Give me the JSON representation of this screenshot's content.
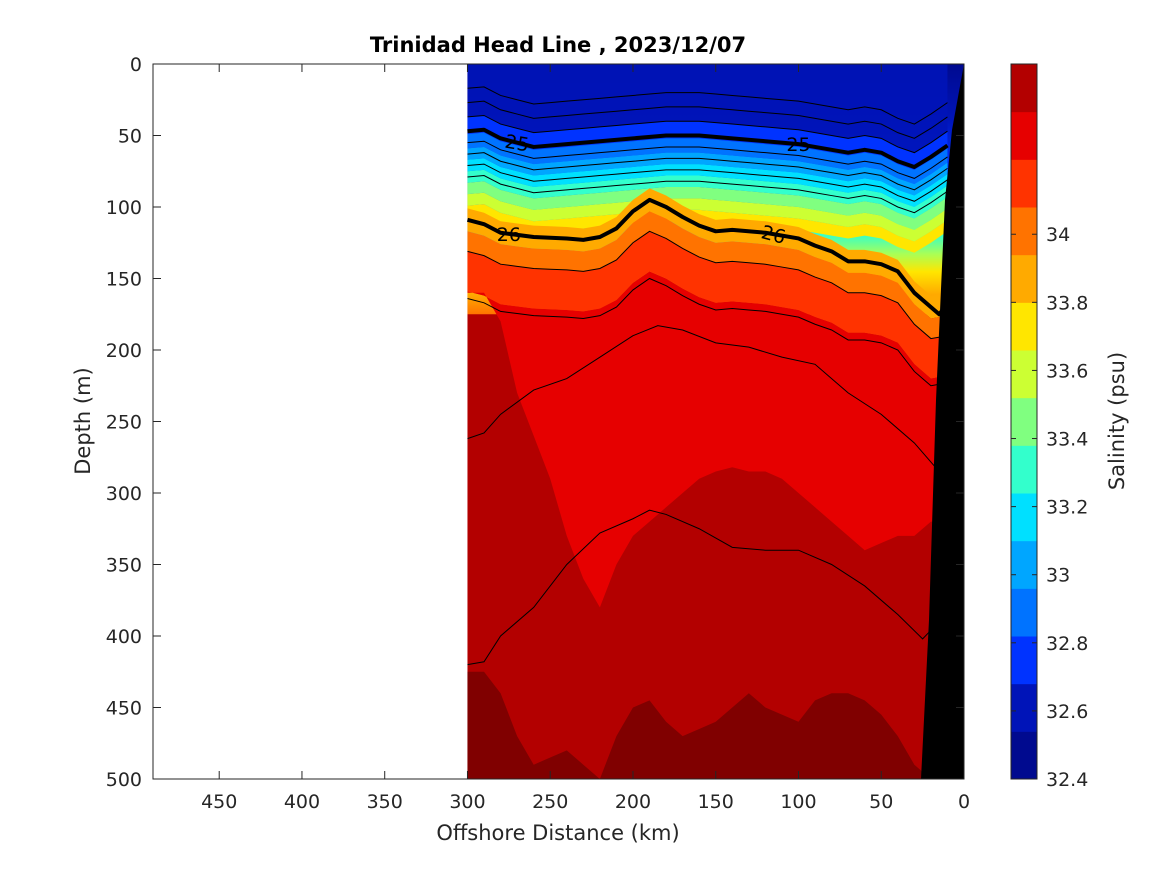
{
  "chart_data": {
    "type": "heatmap",
    "title": "Trinidad Head Line , 2023/12/07",
    "xlabel": "Offshore Distance (km)",
    "ylabel": "Depth (m)",
    "xlim": [
      490,
      0
    ],
    "ylim": [
      0,
      500
    ],
    "x_reversed": true,
    "y_reversed": true,
    "xticks": [
      "450",
      "400",
      "350",
      "300",
      "250",
      "200",
      "150",
      "100",
      "50",
      "0"
    ],
    "yticks": [
      "0",
      "50",
      "100",
      "150",
      "200",
      "250",
      "300",
      "350",
      "400",
      "450",
      "500"
    ],
    "data_extent_km": [
      300,
      10
    ],
    "colorbar": {
      "label": "Salinity (psu)",
      "range": [
        32.4,
        34.5
      ],
      "ticks": [
        "32.4",
        "32.6",
        "32.8",
        "33",
        "33.2",
        "33.4",
        "33.6",
        "33.8",
        "34"
      ],
      "colors": [
        "#000a8f",
        "#0014b8",
        "#0033ff",
        "#0073ff",
        "#00a6ff",
        "#00e0ff",
        "#33ffcc",
        "#80ff80",
        "#ccff33",
        "#ffe600",
        "#ffaa00",
        "#ff7300",
        "#ff3300",
        "#e60000",
        "#b30000"
      ]
    },
    "isopycnals": [
      {
        "label": "25",
        "x": [
          300,
          290,
          280,
          260,
          240,
          220,
          200,
          180,
          160,
          140,
          120,
          100,
          80,
          70,
          60,
          50,
          40,
          30,
          20,
          10
        ],
        "y": [
          47,
          46,
          52,
          58,
          56,
          54,
          52,
          50,
          50,
          52,
          54,
          56,
          60,
          62,
          60,
          62,
          68,
          72,
          65,
          57
        ]
      },
      {
        "label": "26",
        "x": [
          300,
          290,
          280,
          260,
          240,
          230,
          220,
          210,
          200,
          190,
          180,
          170,
          160,
          150,
          140,
          120,
          100,
          90,
          80,
          70,
          60,
          50,
          40,
          30,
          20,
          15,
          10
        ],
        "y": [
          109,
          112,
          118,
          121,
          122,
          123,
          121,
          115,
          103,
          95,
          100,
          107,
          113,
          117,
          116,
          118,
          122,
          127,
          131,
          138,
          138,
          140,
          145,
          160,
          170,
          175,
          168
        ]
      }
    ]
  }
}
